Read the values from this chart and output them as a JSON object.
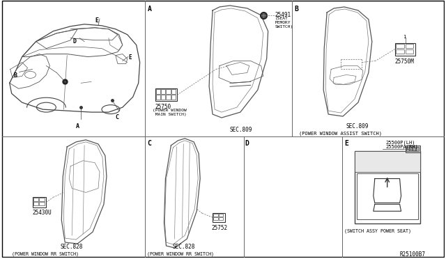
{
  "background_color": "#ffffff",
  "line_color": "#444444",
  "text_color": "#000000",
  "footer": "R25100B7",
  "sections": {
    "A_part": "25750",
    "A_label2": "25491",
    "A_sub1": "(POWER WINDOW",
    "A_sub2": " MAIN SWITCH)",
    "A_sec": "SEC.809",
    "A_mem1": "(SEAT",
    "A_mem2": "MEMORY",
    "A_mem3": "SWITCH)",
    "B_part": "25750M",
    "B_sec": "SEC.809",
    "B_sub": "(POWER WINDOW ASSIST SWITCH)",
    "C_part": "25430U",
    "C_sec": "SEC.828",
    "C_sub": "(POWER WINDOW RR SWITCH)",
    "D_part": "25752",
    "D_sec": "SEC.828",
    "D_sub": "(POWER WINDOW RR SWITCH)",
    "E_part1": "25500P(LH)",
    "E_part2": "25500PA(RH)",
    "E_sub": "(SWITCH ASSY POWER SEAT)"
  },
  "dividers": {
    "vert1": 207,
    "vert2": 420,
    "horiz": 197,
    "vert3": 350,
    "vert4": 492
  }
}
